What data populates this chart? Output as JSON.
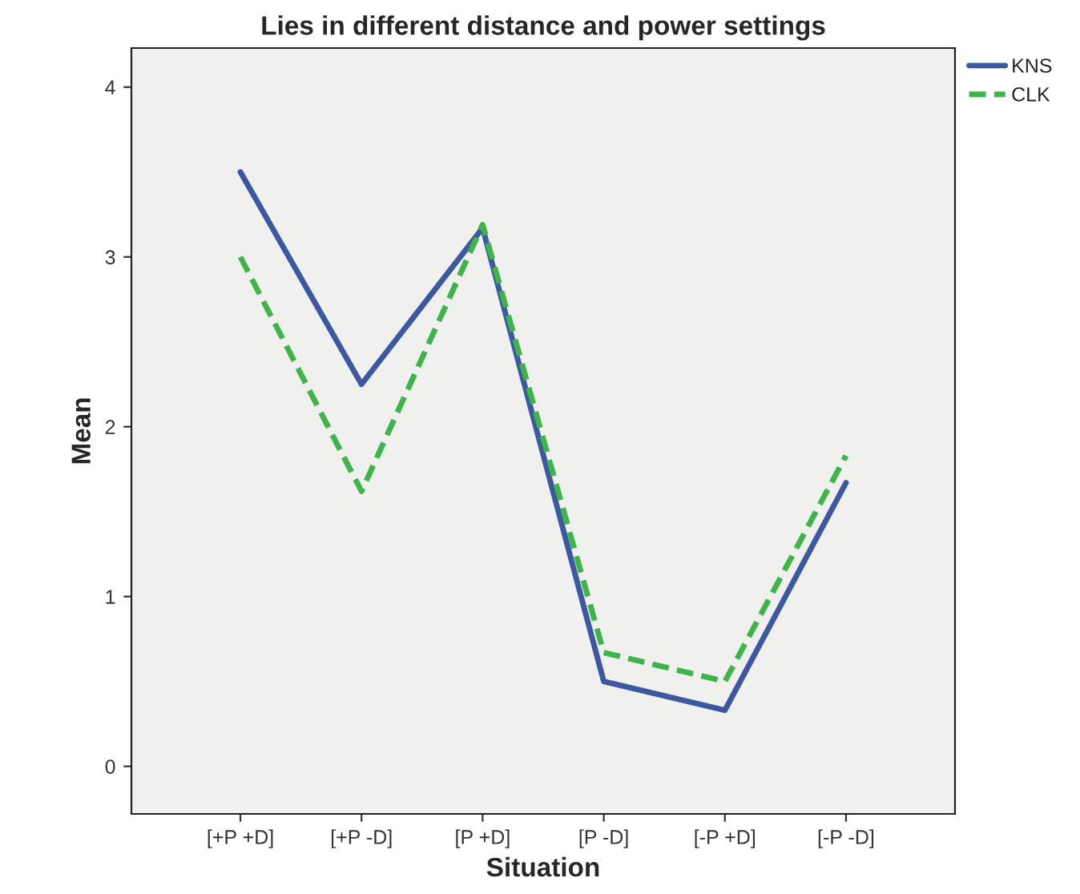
{
  "chart_data": {
    "type": "line",
    "title": "Lies in different distance and power settings",
    "xlabel": "Situation",
    "ylabel": "Mean",
    "categories": [
      "[+P +D]",
      "[+P -D]",
      "[P +D]",
      "[P -D]",
      "[-P +D]",
      "[-P -D]"
    ],
    "series": [
      {
        "name": "KNS",
        "color": "#3c58a0",
        "line_style": "solid",
        "values": [
          3.5,
          2.25,
          3.17,
          0.5,
          0.33,
          1.67
        ]
      },
      {
        "name": "CLK",
        "color": "#3fb44a",
        "line_style": "dashed",
        "values": [
          3.0,
          1.62,
          3.19,
          0.67,
          0.5,
          1.83
        ]
      }
    ],
    "ylim": [
      -0.28,
      4.23
    ],
    "yticks": [
      0,
      1,
      2,
      3,
      4
    ],
    "grid": false,
    "legend": "top right"
  }
}
